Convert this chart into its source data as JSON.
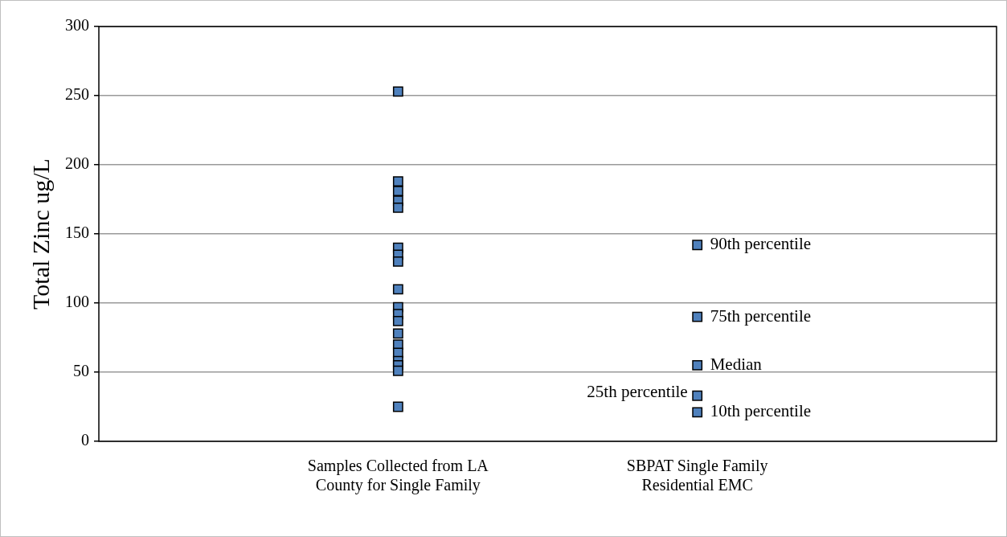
{
  "chart_data": {
    "type": "scatter",
    "ylabel": "Total Zinc ug/L",
    "categories": [
      "Samples Collected from LA County for Single Family",
      "SBPAT Single Family Residential EMC"
    ],
    "series": [
      {
        "color": "#4f81bd",
        "x": [
          "Samples Collected from LA County for Single Family",
          "Samples Collected from LA County for Single Family",
          "Samples Collected from LA County for Single Family",
          "Samples Collected from LA County for Single Family",
          "Samples Collected from LA County for Single Family",
          "Samples Collected from LA County for Single Family",
          "Samples Collected from LA County for Single Family",
          "Samples Collected from LA County for Single Family",
          "Samples Collected from LA County for Single Family",
          "Samples Collected from LA County for Single Family",
          "Samples Collected from LA County for Single Family",
          "Samples Collected from LA County for Single Family",
          "Samples Collected from LA County for Single Family",
          "Samples Collected from LA County for Single Family",
          "Samples Collected from LA County for Single Family",
          "Samples Collected from LA County for Single Family",
          "Samples Collected from LA County for Single Family",
          "Samples Collected from LA County for Single Family",
          "Samples Collected from LA County for Single Family"
        ],
        "values": [
          253,
          188,
          181,
          174,
          169,
          140,
          135,
          130,
          110,
          97,
          92,
          87,
          78,
          70,
          64,
          58,
          55,
          51,
          25
        ]
      },
      {
        "color": "#4f81bd",
        "x": [
          "SBPAT Single Family Residential EMC",
          "SBPAT Single Family Residential EMC",
          "SBPAT Single Family Residential EMC",
          "SBPAT Single Family Residential EMC",
          "SBPAT Single Family Residential EMC"
        ],
        "values": [
          142,
          90,
          55,
          33,
          21
        ]
      }
    ],
    "annotations": [
      {
        "text": "90th percentile",
        "x": "SBPAT Single Family Residential EMC",
        "y": 142
      },
      {
        "text": "75th percentile",
        "x": "SBPAT Single Family Residential EMC",
        "y": 90
      },
      {
        "text": "Median",
        "x": "SBPAT Single Family Residential EMC",
        "y": 55
      },
      {
        "text": "25th percentile",
        "x": "SBPAT Single Family Residential EMC",
        "y": 33
      },
      {
        "text": "10th percentile",
        "x": "SBPAT Single Family Residential EMC",
        "y": 21
      }
    ],
    "ylim": [
      0,
      300
    ],
    "yticks": [
      0,
      50,
      100,
      150,
      200,
      250,
      300
    ],
    "grid": "y",
    "legend": false,
    "marker": "square"
  }
}
